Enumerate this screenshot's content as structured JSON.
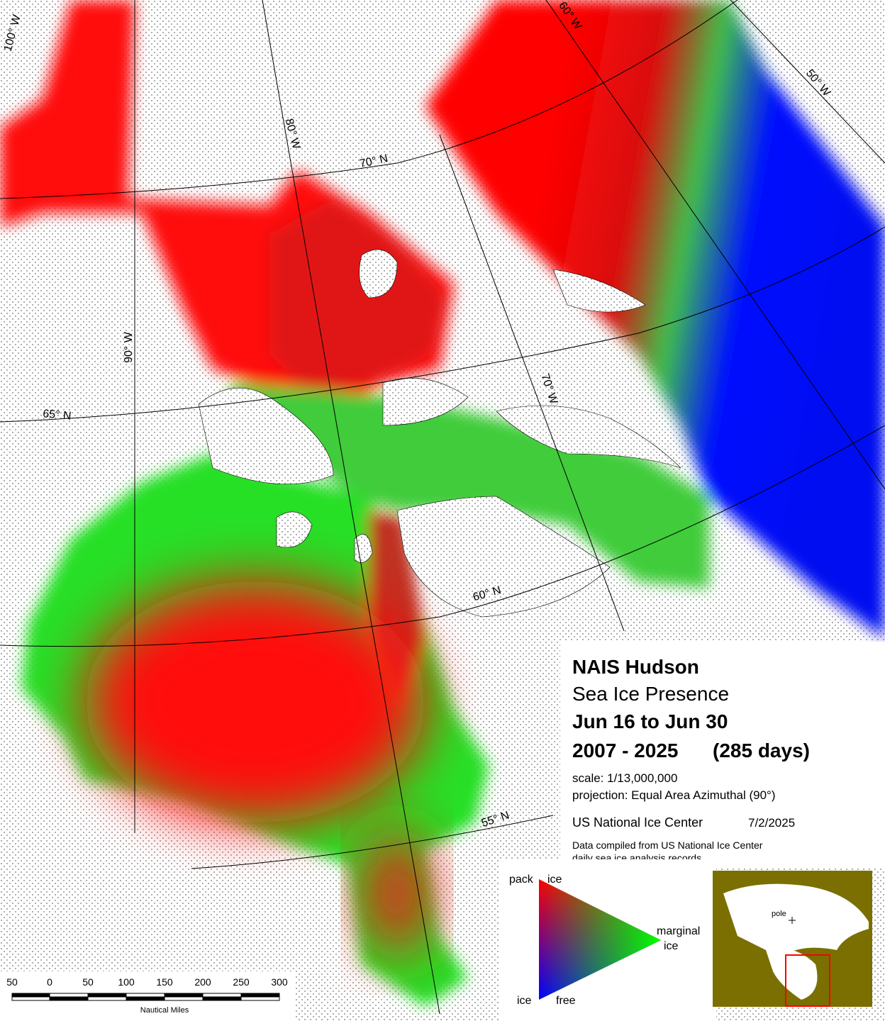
{
  "map": {
    "graticule_labels": [
      "100° W",
      "90° W",
      "80° W",
      "70° W",
      "60° W",
      "50° W",
      "70° N",
      "65° N",
      "60° N",
      "55° N"
    ],
    "title": "NAIS Hudson",
    "subtitle": "Sea Ice Presence",
    "period": "Jun 16 to Jun 30",
    "years": "2007 - 2025",
    "days": "(285 days)",
    "scale": "scale: 1/13,000,000",
    "projection": "projection: Equal Area Azimuthal (90°)",
    "agency": "US National Ice Center",
    "date": "7/2/2025",
    "note": [
      "Data compiled from US National Ice Center",
      "daily sea ice analysis records"
    ]
  },
  "legend": {
    "pack": "pack",
    "pack_ice": "ice",
    "marginal": "marginal",
    "marginal_ice": "ice",
    "free_ice": "ice",
    "free": "free"
  },
  "scale_bar": {
    "labels": [
      50,
      0,
      50,
      100,
      150,
      200,
      250,
      300
    ],
    "unit": "Nautical Miles"
  },
  "inset": {
    "pole": "pole"
  }
}
